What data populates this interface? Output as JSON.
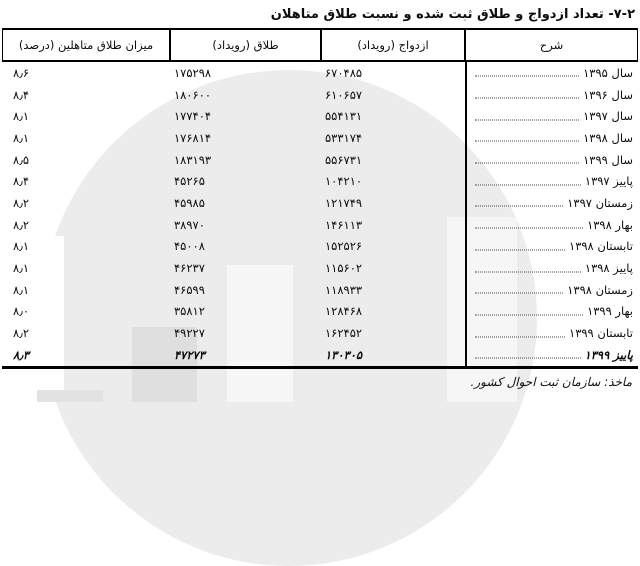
{
  "title": "۷-۲- تعداد ازدواج و طلاق ثبت شده و نسبت طلاق متاهلان",
  "source_note": "ماخذ: سازمان ثبت احوال کشور.",
  "colors": {
    "background": "#ffffff",
    "text": "#0d0d0d",
    "rule": "#000000",
    "watermark_circle": "#ececec",
    "watermark_bar_gray": "#dfdfdf"
  },
  "table": {
    "headers": {
      "description": "شرح",
      "marriage": "ازدواج (رویداد)",
      "divorce": "طلاق (رویداد)",
      "rate": "میزان طلاق متاهلین (درصد)"
    },
    "rows": [
      {
        "label": "سال ۱۳۹۵",
        "marriage": "۶۷۰۴۸۵",
        "divorce": "۱۷۵۲۹۸",
        "rate": "۸٫۶",
        "emphasis": false
      },
      {
        "label": "سال ۱۳۹۶",
        "marriage": "۶۱۰۶۵۷",
        "divorce": "۱۸۰۶۰۰",
        "rate": "۸٫۴",
        "emphasis": false
      },
      {
        "label": "سال ۱۳۹۷",
        "marriage": "۵۵۴۱۳۱",
        "divorce": "۱۷۷۴۰۴",
        "rate": "۸٫۱",
        "emphasis": false
      },
      {
        "label": "سال ۱۳۹۸",
        "marriage": "۵۳۳۱۷۴",
        "divorce": "۱۷۶۸۱۴",
        "rate": "۸٫۱",
        "emphasis": false
      },
      {
        "label": "سال ۱۳۹۹",
        "marriage": "۵۵۶۷۳۱",
        "divorce": "۱۸۳۱۹۳",
        "rate": "۸٫۵",
        "emphasis": false
      },
      {
        "label": "پاییز ۱۳۹۷",
        "marriage": "۱۰۴۲۱۰",
        "divorce": "۴۵۲۶۵",
        "rate": "۸٫۴",
        "emphasis": false
      },
      {
        "label": "زمستان ۱۳۹۷",
        "marriage": "۱۲۱۷۴۹",
        "divorce": "۴۵۹۸۵",
        "rate": "۸٫۲",
        "emphasis": false
      },
      {
        "label": "بهار ۱۳۹۸",
        "marriage": "۱۴۶۱۱۳",
        "divorce": "۳۸۹۷۰",
        "rate": "۸٫۲",
        "emphasis": false
      },
      {
        "label": "تابستان ۱۳۹۸",
        "marriage": "۱۵۲۵۲۶",
        "divorce": "۴۵۰۰۸",
        "rate": "۸٫۱",
        "emphasis": false
      },
      {
        "label": "پاییز ۱۳۹۸",
        "marriage": "۱۱۵۶۰۲",
        "divorce": "۴۶۲۳۷",
        "rate": "۸٫۱",
        "emphasis": false
      },
      {
        "label": "زمستان ۱۳۹۸",
        "marriage": "۱۱۸۹۳۳",
        "divorce": "۴۶۵۹۹",
        "rate": "۸٫۱",
        "emphasis": false
      },
      {
        "label": "بهار ۱۳۹۹",
        "marriage": "۱۲۸۴۶۸",
        "divorce": "۳۵۸۱۲",
        "rate": "۸٫۰",
        "emphasis": false
      },
      {
        "label": "تابستان ۱۳۹۹",
        "marriage": "۱۶۲۴۵۲",
        "divorce": "۴۹۲۲۷",
        "rate": "۸٫۲",
        "emphasis": false
      },
      {
        "label": "پاییز ۱۳۹۹",
        "marriage": "۱۳۰۳۰۵",
        "divorce": "۴۷۲۷۳",
        "rate": "۸٫۳",
        "emphasis": true
      }
    ]
  },
  "chart_data": {
    "type": "table",
    "title": "۷-۲- تعداد ازدواج و طلاق ثبت شده و نسبت طلاق متاهلان",
    "columns": [
      "period",
      "marriages_events",
      "divorces_events",
      "married_divorce_rate_percent"
    ],
    "rows": [
      [
        "سال ۱۳۹۵",
        670485,
        175298,
        8.6
      ],
      [
        "سال ۱۳۹۶",
        610657,
        180600,
        8.4
      ],
      [
        "سال ۱۳۹۷",
        554131,
        177404,
        8.1
      ],
      [
        "سال ۱۳۹۸",
        533174,
        176814,
        8.1
      ],
      [
        "سال ۱۳۹۹",
        556731,
        183193,
        8.5
      ],
      [
        "پاییز ۱۳۹۷",
        104210,
        45265,
        8.4
      ],
      [
        "زمستان ۱۳۹۷",
        121749,
        45985,
        8.2
      ],
      [
        "بهار ۱۳۹۸",
        146113,
        38970,
        8.2
      ],
      [
        "تابستان ۱۳۹۸",
        152526,
        45008,
        8.1
      ],
      [
        "پاییز ۱۳۹۸",
        115602,
        46237,
        8.1
      ],
      [
        "زمستان ۱۳۹۸",
        118933,
        46599,
        8.1
      ],
      [
        "بهار ۱۳۹۹",
        128468,
        35812,
        8.0
      ],
      [
        "تابستان ۱۳۹۹",
        162452,
        49227,
        8.2
      ],
      [
        "پاییز ۱۳۹۹",
        130305,
        47273,
        8.3
      ]
    ],
    "source": "ماخذ: سازمان ثبت احوال کشور."
  }
}
